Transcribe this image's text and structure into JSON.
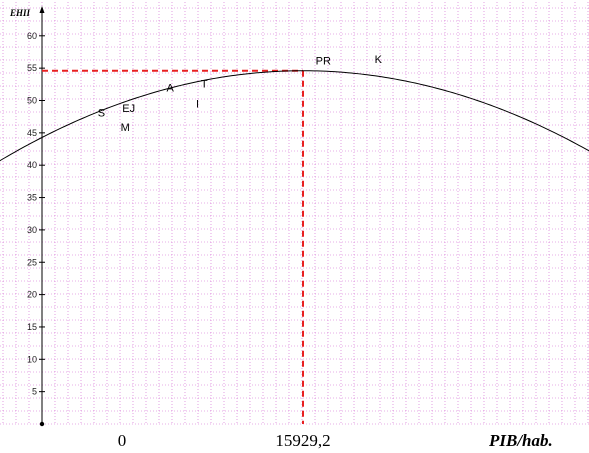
{
  "chart_data": {
    "type": "line",
    "ylabel": "EHII",
    "xlabel": "PIB/hab.",
    "ylim": [
      0,
      64
    ],
    "yticks": [
      5,
      10,
      15,
      20,
      25,
      30,
      35,
      40,
      45,
      50,
      55,
      60
    ],
    "x_tick_labels": [
      {
        "x": 0,
        "label": "0"
      },
      {
        "x": 15929.2,
        "label": "15929,2"
      }
    ],
    "grid": true,
    "curve": {
      "type": "parabola",
      "vertex_x": 15929.2,
      "vertex_y": 54.6,
      "points": [
        {
          "x": -5000,
          "y": 36.8
        },
        {
          "x": 0,
          "y": 40.4
        },
        {
          "x": 5000,
          "y": 45.7
        },
        {
          "x": 10000,
          "y": 51.8
        },
        {
          "x": 15929.2,
          "y": 54.6
        },
        {
          "x": 20000,
          "y": 53.9
        },
        {
          "x": 25000,
          "y": 50.9
        },
        {
          "x": 30000,
          "y": 45.9
        },
        {
          "x": 35000,
          "y": 39.2
        },
        {
          "x": 36500,
          "y": 37.8
        }
      ]
    },
    "reference_lines": [
      {
        "type": "horizontal",
        "y": 54.6,
        "color": "#e82020",
        "style": "dashed"
      },
      {
        "type": "vertical",
        "x": 15929.2,
        "color": "#e82020",
        "style": "dashed"
      }
    ],
    "point_labels": [
      {
        "label": "S",
        "x": 3400,
        "y": 47.5
      },
      {
        "label": "EJ",
        "x": 4900,
        "y": 48.2
      },
      {
        "label": "M",
        "x": 4800,
        "y": 45.3
      },
      {
        "label": "A",
        "x": 7600,
        "y": 51.4
      },
      {
        "label": "T",
        "x": 9700,
        "y": 52.0
      },
      {
        "label": "I",
        "x": 9400,
        "y": 48.9
      },
      {
        "label": "PR",
        "x": 16700,
        "y": 55.6
      },
      {
        "label": "K",
        "x": 20300,
        "y": 55.8
      }
    ],
    "colors": {
      "curve": "#000000",
      "reference": "#e82020",
      "grid": "#d060d0"
    }
  }
}
